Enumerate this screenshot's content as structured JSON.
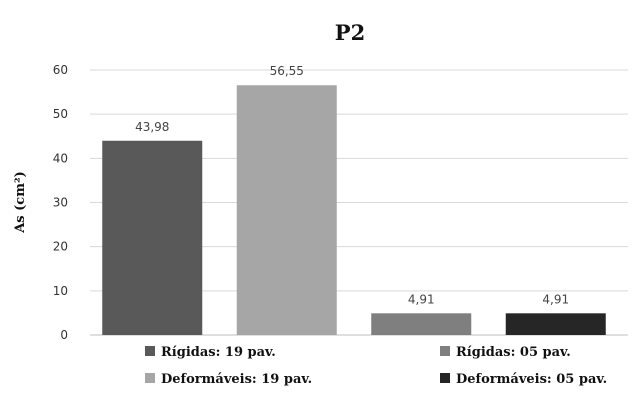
{
  "chart_data": {
    "type": "bar",
    "title": "P2",
    "xlabel": "",
    "ylabel": "As (cm²)",
    "ylim": [
      0,
      60
    ],
    "yticks": [
      0,
      10,
      20,
      30,
      40,
      50,
      60
    ],
    "grid": true,
    "legend_position": "bottom",
    "series": [
      {
        "name": "Rígidas: 19 pav.",
        "value": 43.98,
        "label": "43,98",
        "color": "#595959"
      },
      {
        "name": "Deformáveis: 19 pav.",
        "value": 56.55,
        "label": "56,55",
        "color": "#a6a6a6"
      },
      {
        "name": "Rígidas: 05 pav.",
        "value": 4.91,
        "label": "4,91",
        "color": "#7f7f7f"
      },
      {
        "name": "Deformáveis: 05 pav.",
        "value": 4.91,
        "label": "4,91",
        "color": "#262626"
      }
    ]
  }
}
